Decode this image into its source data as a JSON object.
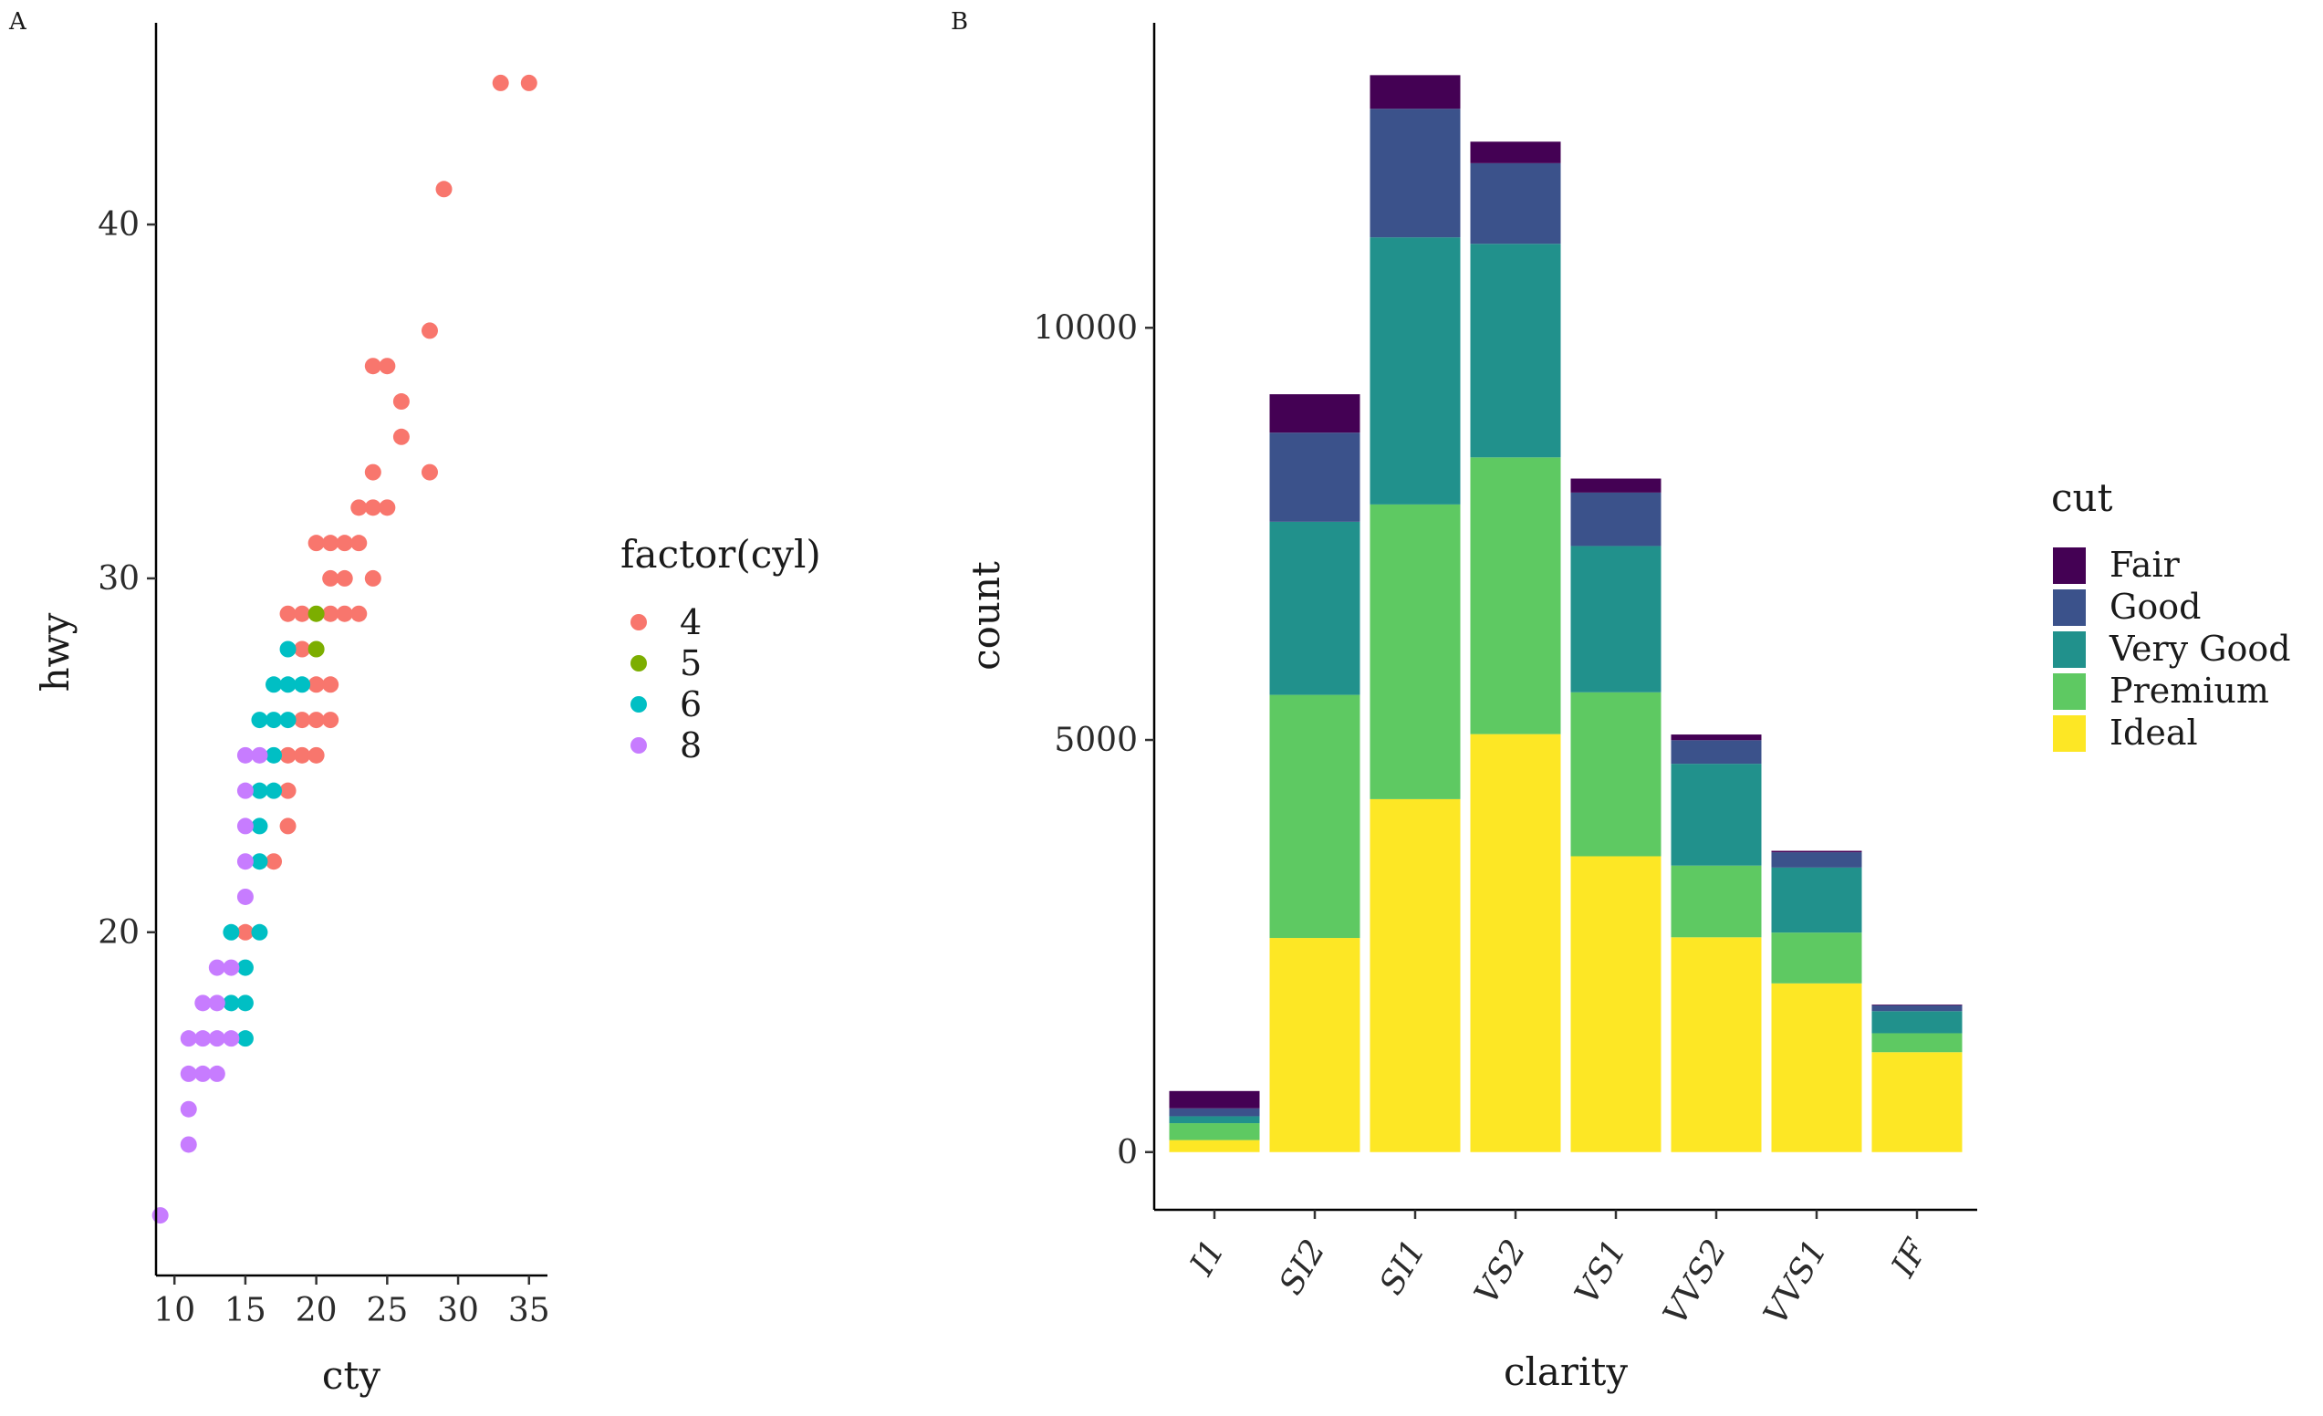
{
  "chart_data": [
    {
      "panel_tag": "A",
      "type": "scatter",
      "xlabel": "cty",
      "ylabel": "hwy",
      "xlim": [
        8.7,
        36.3
      ],
      "ylim": [
        10.3,
        45.7
      ],
      "xticks": [
        "10",
        "15",
        "20",
        "25",
        "30",
        "35"
      ],
      "yticks": [
        "20",
        "30",
        "40"
      ],
      "grid": false,
      "legend": {
        "title": "factor(cyl)",
        "position": "right",
        "entries": [
          {
            "label": "4",
            "color": "#F8766D"
          },
          {
            "label": "5",
            "color": "#7CAE00"
          },
          {
            "label": "6",
            "color": "#00BFC4"
          },
          {
            "label": "8",
            "color": "#C77CFF"
          }
        ]
      },
      "series": [
        {
          "name": "4",
          "color": "#F8766D",
          "points": [
            [
              33,
              44
            ],
            [
              35,
              44
            ],
            [
              29,
              41
            ],
            [
              28,
              37
            ],
            [
              24,
              36
            ],
            [
              25,
              36
            ],
            [
              26,
              35
            ],
            [
              26,
              34
            ],
            [
              24,
              33
            ],
            [
              28,
              33
            ],
            [
              23,
              32
            ],
            [
              24,
              32
            ],
            [
              25,
              32
            ],
            [
              20,
              31
            ],
            [
              21,
              31
            ],
            [
              22,
              31
            ],
            [
              23,
              31
            ],
            [
              21,
              30
            ],
            [
              22,
              30
            ],
            [
              24,
              30
            ],
            [
              18,
              29
            ],
            [
              19,
              29
            ],
            [
              21,
              29
            ],
            [
              22,
              29
            ],
            [
              23,
              29
            ],
            [
              19,
              28
            ],
            [
              20,
              27
            ],
            [
              21,
              27
            ],
            [
              19,
              26
            ],
            [
              20,
              26
            ],
            [
              21,
              26
            ],
            [
              18,
              25
            ],
            [
              19,
              25
            ],
            [
              20,
              25
            ],
            [
              18,
              24
            ],
            [
              18,
              23
            ],
            [
              17,
              22
            ],
            [
              15,
              20
            ]
          ]
        },
        {
          "name": "5",
          "color": "#7CAE00",
          "points": [
            [
              20,
              29
            ],
            [
              20,
              28
            ]
          ]
        },
        {
          "name": "6",
          "color": "#00BFC4",
          "points": [
            [
              18,
              28
            ],
            [
              17,
              27
            ],
            [
              18,
              27
            ],
            [
              19,
              27
            ],
            [
              16,
              26
            ],
            [
              17,
              26
            ],
            [
              18,
              26
            ],
            [
              17,
              25
            ],
            [
              16,
              24
            ],
            [
              17,
              24
            ],
            [
              16,
              23
            ],
            [
              16,
              22
            ],
            [
              14,
              20
            ],
            [
              16,
              20
            ],
            [
              15,
              19
            ],
            [
              14,
              18
            ],
            [
              15,
              18
            ],
            [
              15,
              17
            ]
          ]
        },
        {
          "name": "8",
          "color": "#C77CFF",
          "points": [
            [
              15,
              25
            ],
            [
              16,
              25
            ],
            [
              15,
              24
            ],
            [
              15,
              23
            ],
            [
              15,
              22
            ],
            [
              15,
              21
            ],
            [
              13,
              19
            ],
            [
              14,
              19
            ],
            [
              12,
              18
            ],
            [
              13,
              18
            ],
            [
              11,
              17
            ],
            [
              12,
              17
            ],
            [
              13,
              17
            ],
            [
              14,
              17
            ],
            [
              11,
              16
            ],
            [
              12,
              16
            ],
            [
              13,
              16
            ],
            [
              11,
              15
            ],
            [
              11,
              14
            ],
            [
              9,
              12
            ]
          ]
        }
      ]
    },
    {
      "panel_tag": "B",
      "type": "bar",
      "stacked": true,
      "xlabel": "clarity",
      "ylabel": "count",
      "ylim": [
        -700,
        13700
      ],
      "yticks": [
        "0",
        "5000",
        "10000"
      ],
      "categories": [
        "I1",
        "SI2",
        "SI1",
        "VS2",
        "VS1",
        "VVS2",
        "VVS1",
        "IF"
      ],
      "grid": false,
      "legend": {
        "title": "cut",
        "position": "right"
      },
      "series": [
        {
          "name": "Ideal",
          "color": "#FDE725",
          "values": [
            146,
            2598,
            4282,
            5071,
            3589,
            2606,
            2047,
            1212
          ]
        },
        {
          "name": "Premium",
          "color": "#5EC962",
          "values": [
            205,
            2949,
            3575,
            3357,
            1989,
            870,
            616,
            230
          ]
        },
        {
          "name": "Very Good",
          "color": "#21918C",
          "values": [
            84,
            2100,
            3240,
            2591,
            1775,
            1235,
            789,
            268
          ]
        },
        {
          "name": "Good",
          "color": "#3B528B",
          "values": [
            96,
            1081,
            1560,
            978,
            648,
            286,
            186,
            71
          ]
        },
        {
          "name": "Fair",
          "color": "#440154",
          "values": [
            210,
            466,
            408,
            261,
            170,
            69,
            17,
            9
          ]
        }
      ],
      "legend_order": [
        "Fair",
        "Good",
        "Very Good",
        "Premium",
        "Ideal"
      ]
    }
  ]
}
